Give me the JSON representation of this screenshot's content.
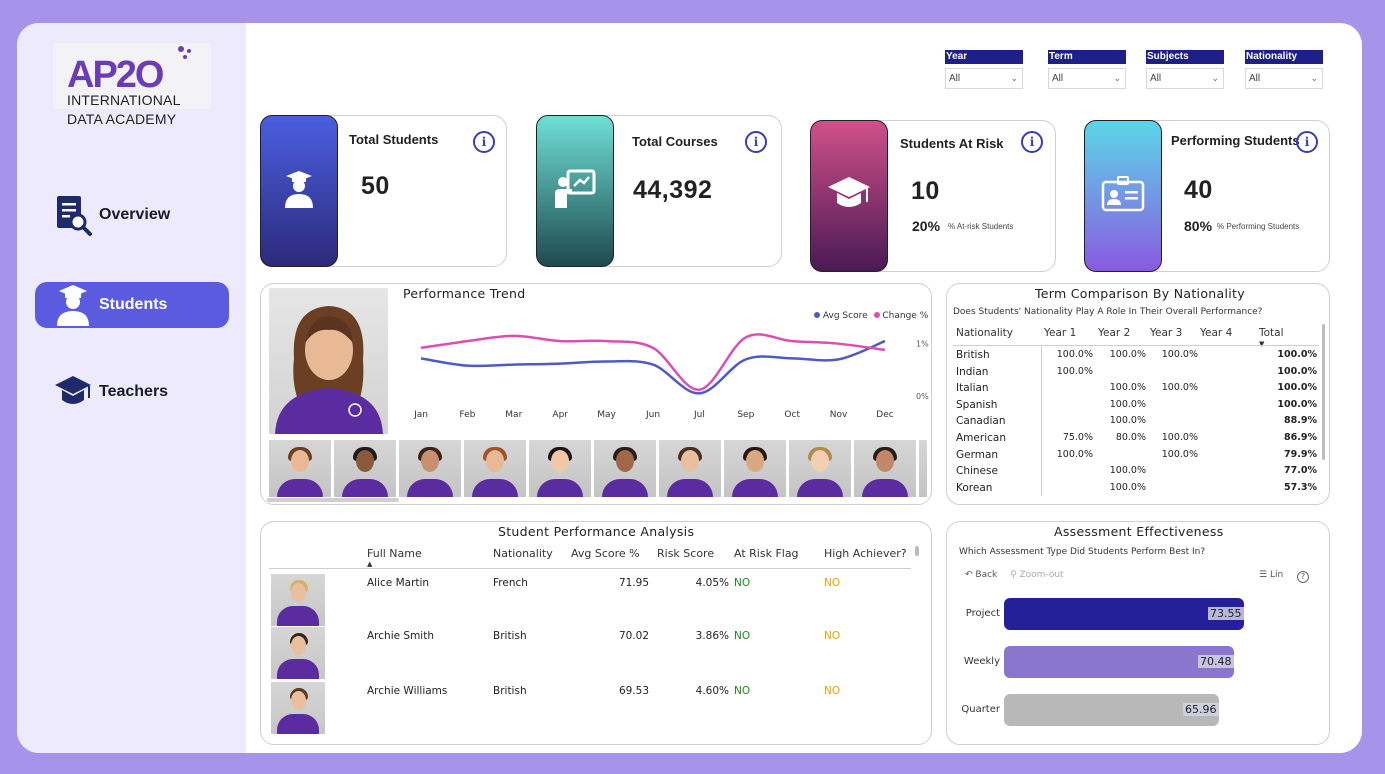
{
  "brand": {
    "logo_mark": "AP2O",
    "line1": "INTERNATIONAL",
    "line2": "DATA ACADEMY"
  },
  "nav": [
    {
      "label": "Overview",
      "icon": "report-search-icon",
      "active": false
    },
    {
      "label": "Students",
      "icon": "student-icon",
      "active": true
    },
    {
      "label": "Teachers",
      "icon": "graduation-cap-icon",
      "active": false
    }
  ],
  "filters": [
    {
      "title": "Year",
      "value": "All"
    },
    {
      "title": "Term",
      "value": "All"
    },
    {
      "title": "Subjects",
      "value": "All"
    },
    {
      "title": "Nationality",
      "value": "All"
    }
  ],
  "kpis": {
    "total_students": {
      "title": "Total Students",
      "value": "50"
    },
    "total_courses": {
      "title": "Total Courses",
      "value": "44,392"
    },
    "students_at_risk": {
      "title": "Students At Risk",
      "value": "10",
      "pct": "20%",
      "sub": "% At-risk Students"
    },
    "performing_students": {
      "title": "Performing Students",
      "value": "40",
      "pct": "80%",
      "sub": "% Performing Students"
    }
  },
  "trend": {
    "title": "Performance Trend",
    "legend": [
      {
        "name": "Avg Score",
        "color": "#4f5ac3"
      },
      {
        "name": "Change %",
        "color": "#d94fb7"
      }
    ],
    "y_ticks": [
      "1%",
      "0%"
    ]
  },
  "chart_data": {
    "type": "line",
    "x": [
      "Jan",
      "Feb",
      "Mar",
      "Apr",
      "May",
      "Jun",
      "Jul",
      "Sep",
      "Oct",
      "Nov",
      "Dec"
    ],
    "series": [
      {
        "name": "Avg Score",
        "values": [
          0.72,
          0.58,
          0.6,
          0.62,
          0.66,
          0.6,
          0.05,
          0.7,
          0.72,
          0.7,
          1.05
        ]
      },
      {
        "name": "Change %",
        "values": [
          0.92,
          1.05,
          1.15,
          1.05,
          1.05,
          0.92,
          0.12,
          1.12,
          1.05,
          1.0,
          0.88
        ]
      }
    ],
    "ylim": [
      0,
      1.3
    ]
  },
  "term_comparison": {
    "title": "Term Comparison By Nationality",
    "subtitle": "Does Students' Nationality Play A Role In Their Overall Performance?",
    "columns": [
      "Nationality",
      "Year 1",
      "Year 2",
      "Year 3",
      "Year 4",
      "Total"
    ],
    "rows": [
      [
        "British",
        "100.0%",
        "100.0%",
        "100.0%",
        "",
        "100.0%"
      ],
      [
        "Indian",
        "100.0%",
        "",
        "",
        "",
        "100.0%"
      ],
      [
        "Italian",
        "",
        "100.0%",
        "100.0%",
        "",
        "100.0%"
      ],
      [
        "Spanish",
        "",
        "100.0%",
        "",
        "",
        "100.0%"
      ],
      [
        "Canadian",
        "",
        "100.0%",
        "",
        "",
        "88.9%"
      ],
      [
        "American",
        "75.0%",
        "80.0%",
        "100.0%",
        "",
        "86.9%"
      ],
      [
        "German",
        "100.0%",
        "",
        "100.0%",
        "",
        "79.9%"
      ],
      [
        "Chinese",
        "",
        "100.0%",
        "",
        "",
        "77.0%"
      ],
      [
        "Korean",
        "",
        "100.0%",
        "",
        "",
        "57.3%"
      ]
    ]
  },
  "performance_table": {
    "title": "Student Performance Analysis",
    "columns": [
      "Full Name",
      "Nationality",
      "Avg Score %",
      "Risk Score",
      "At Risk Flag",
      "High Achiever?"
    ],
    "rows": [
      {
        "name": "Alice Martin",
        "nationality": "French",
        "avg": "71.95",
        "risk": "4.05%",
        "flag": "NO",
        "high": "NO"
      },
      {
        "name": "Archie Smith",
        "nationality": "British",
        "avg": "70.02",
        "risk": "3.86%",
        "flag": "NO",
        "high": "NO"
      },
      {
        "name": "Archie Williams",
        "nationality": "British",
        "avg": "69.53",
        "risk": "4.60%",
        "flag": "NO",
        "high": "NO"
      }
    ]
  },
  "assessment": {
    "title": "Assessment Effectiveness",
    "subtitle": "Which Assessment Type Did Students Perform Best In?",
    "back_label": "Back",
    "zoom_label": "Zoom-out",
    "lin_label": "Lin",
    "help_label": "?",
    "bars": [
      {
        "label": "Project",
        "value": 73.55,
        "display": "73.55",
        "color": "#23209a"
      },
      {
        "label": "Weekly",
        "value": 70.48,
        "display": "70.48",
        "color": "#8a75cf"
      },
      {
        "label": "Quarter",
        "value": 65.96,
        "display": "65.96",
        "color": "#b8b8b8"
      }
    ]
  },
  "colors": {
    "flag_no": "#1a8a1a",
    "achiever_no": "#f0a000",
    "active_nav": "#5b5be0"
  }
}
